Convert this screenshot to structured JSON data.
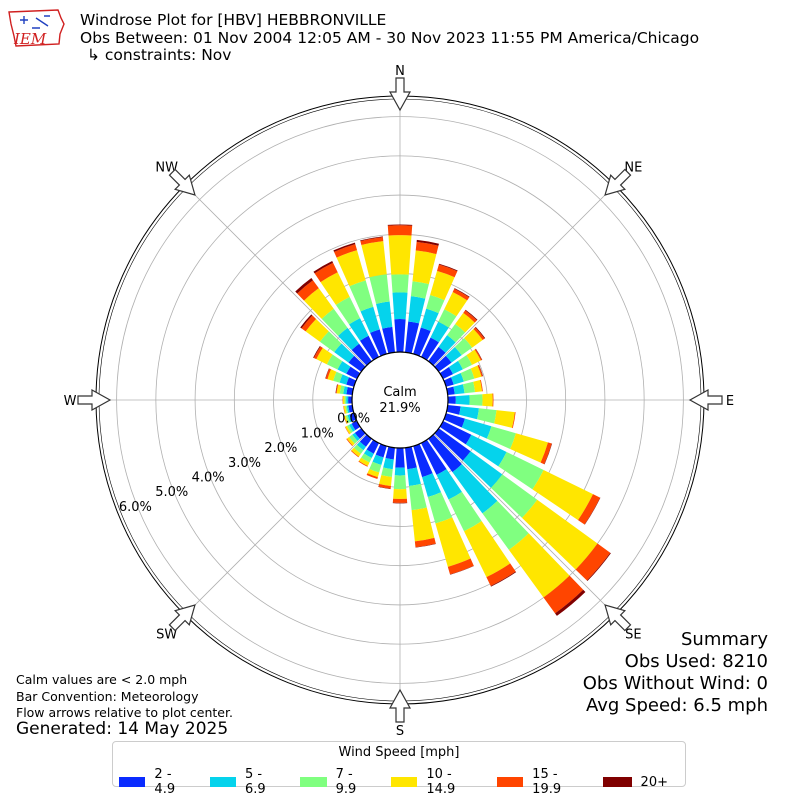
{
  "logo": {
    "text": "IEM",
    "icon": "iem-iowa-logo-icon"
  },
  "header": {
    "title": "Windrose Plot for [HBV] HEBBRONVILLE",
    "subtitle": "Obs Between: 01 Nov 2004 12:05 AM - 30 Nov 2023 11:55 PM America/Chicago",
    "constraints": "↳ constraints: Nov"
  },
  "notes": {
    "calm": "Calm values are < 2.0 mph",
    "bar_convention": "Bar Convention: Meteorology",
    "flow": "Flow arrows relative to plot center.",
    "generated": "Generated: 14 May 2025"
  },
  "summary": {
    "title": "Summary",
    "obs_used": "Obs Used: 8210",
    "obs_without_wind": "Obs Without Wind: 0",
    "avg_speed": "Avg Speed: 6.5 mph"
  },
  "chart_data": {
    "type": "windrose",
    "calm_label": "Calm",
    "calm_value": "21.9%",
    "direction_labels": [
      "N",
      "NE",
      "E",
      "SE",
      "S",
      "SW",
      "W",
      "NW"
    ],
    "radial_ticks": [
      "0.0%",
      "1.0%",
      "2.0%",
      "3.0%",
      "4.0%",
      "5.0%",
      "6.0%"
    ],
    "rmax": 6.5,
    "grid": true,
    "legend_title": "Wind Speed [mph]",
    "legend_position": "bottom",
    "categories": [
      "2 - 4.9",
      "5 - 6.9",
      "7 - 9.9",
      "10 - 14.9",
      "15 - 19.9",
      "20+"
    ],
    "colors": [
      "#0a2bff",
      "#05d3ec",
      "#80ff80",
      "#ffe600",
      "#ff4500",
      "#800000"
    ],
    "directions_deg": [
      0,
      10,
      20,
      30,
      40,
      50,
      60,
      70,
      80,
      90,
      100,
      110,
      120,
      130,
      140,
      150,
      160,
      170,
      180,
      190,
      200,
      210,
      220,
      230,
      240,
      250,
      260,
      270,
      280,
      290,
      300,
      310,
      320,
      330,
      340,
      350
    ],
    "cumulative_pct": [
      [
        0.84,
        1.52,
        1.98,
        2.98,
        3.23,
        3.25
      ],
      [
        0.79,
        1.44,
        1.82,
        2.61,
        2.83,
        2.88
      ],
      [
        0.7,
        1.2,
        1.56,
        2.2,
        2.37,
        2.39
      ],
      [
        0.55,
        1.0,
        1.35,
        1.84,
        1.93,
        1.95
      ],
      [
        0.45,
        0.82,
        1.17,
        1.52,
        1.6,
        1.62
      ],
      [
        0.4,
        0.72,
        1.05,
        1.38,
        1.44,
        1.46
      ],
      [
        0.28,
        0.56,
        0.82,
        1.07,
        1.1,
        1.11
      ],
      [
        0.2,
        0.47,
        0.75,
        0.94,
        0.97,
        0.98
      ],
      [
        0.18,
        0.43,
        0.7,
        0.88,
        0.9,
        0.9
      ],
      [
        0.2,
        0.55,
        0.88,
        1.14,
        1.16,
        1.16
      ],
      [
        0.33,
        0.8,
        1.25,
        1.72,
        1.74,
        1.74
      ],
      [
        0.5,
        1.2,
        1.85,
        2.7,
        2.8,
        2.81
      ],
      [
        0.8,
        1.8,
        2.85,
        4.25,
        4.45,
        4.46
      ],
      [
        1.0,
        2.0,
        3.1,
        5.0,
        5.4,
        5.42
      ],
      [
        1.05,
        2.35,
        3.5,
        5.0,
        5.5,
        5.58
      ],
      [
        0.9,
        1.6,
        2.5,
        3.8,
        4.05,
        4.07
      ],
      [
        0.82,
        1.35,
        2.05,
        3.2,
        3.4,
        3.41
      ],
      [
        0.55,
        0.98,
        1.6,
        2.4,
        2.55,
        2.56
      ],
      [
        0.5,
        0.7,
        1.05,
        1.3,
        1.4,
        1.41
      ],
      [
        0.3,
        0.55,
        0.75,
        0.98,
        1.05,
        1.06
      ],
      [
        0.3,
        0.5,
        0.7,
        0.82,
        0.87,
        0.87
      ],
      [
        0.3,
        0.42,
        0.55,
        0.65,
        0.67,
        0.67
      ],
      [
        0.25,
        0.36,
        0.47,
        0.56,
        0.58,
        0.58
      ],
      [
        0.2,
        0.28,
        0.38,
        0.45,
        0.47,
        0.47
      ],
      [
        0.15,
        0.22,
        0.28,
        0.33,
        0.34,
        0.34
      ],
      [
        0.12,
        0.17,
        0.22,
        0.26,
        0.27,
        0.27
      ],
      [
        0.1,
        0.14,
        0.18,
        0.22,
        0.23,
        0.23
      ],
      [
        0.1,
        0.15,
        0.19,
        0.23,
        0.24,
        0.24
      ],
      [
        0.15,
        0.23,
        0.32,
        0.4,
        0.42,
        0.43
      ],
      [
        0.2,
        0.38,
        0.55,
        0.7,
        0.75,
        0.76
      ],
      [
        0.3,
        0.55,
        0.85,
        1.15,
        1.22,
        1.24
      ],
      [
        0.4,
        0.85,
        1.3,
        1.75,
        1.88,
        1.92
      ],
      [
        0.55,
        1.05,
        1.65,
        2.3,
        2.55,
        2.62
      ],
      [
        0.6,
        1.1,
        1.7,
        2.4,
        2.67,
        2.72
      ],
      [
        0.65,
        1.25,
        1.95,
        2.75,
        2.91,
        2.95
      ],
      [
        0.65,
        1.3,
        2.0,
        2.85,
        2.95,
        2.97
      ]
    ]
  }
}
